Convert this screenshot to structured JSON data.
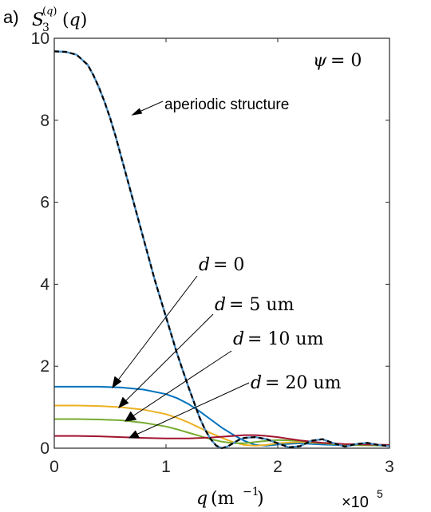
{
  "panel_label": "a)",
  "chart_data": {
    "type": "line",
    "title": "",
    "ylabel": "S_3^{(q)}(q)",
    "xlabel": "q (m^{-1})",
    "x_exponent": "×10^5",
    "xlim": [
      0,
      3
    ],
    "ylim": [
      0,
      10
    ],
    "x_scale_factor": 100000,
    "grid": false,
    "box": true,
    "xticks": [
      "0",
      "1",
      "2",
      "3"
    ],
    "yticks": [
      "0",
      "2",
      "4",
      "6",
      "8",
      "10"
    ],
    "annotations": {
      "psi": "ψ = 0",
      "aperiodic": "aperiodic structure",
      "d0": "d = 0",
      "d5": "d = 5 um",
      "d10": "d = 10 um",
      "d20": "d = 20 um"
    },
    "series": [
      {
        "key": "aperiodic",
        "color": "#000000",
        "dashed": true,
        "x": [
          0,
          0.1,
          0.2,
          0.3,
          0.35,
          0.4,
          0.45,
          0.5,
          0.55,
          0.6,
          0.65,
          0.7,
          0.8,
          0.9,
          1.0,
          1.1,
          1.2,
          1.3,
          1.35,
          1.4,
          1.45,
          1.5,
          1.55,
          1.6,
          1.65,
          1.7,
          1.8,
          1.9,
          2.0,
          2.1,
          2.2,
          2.3,
          2.4,
          2.5,
          2.6,
          2.7,
          2.8,
          2.9,
          3.0
        ],
        "y": [
          9.68,
          9.67,
          9.6,
          9.35,
          9.1,
          8.8,
          8.45,
          8.05,
          7.6,
          7.1,
          6.6,
          6.1,
          5.1,
          4.1,
          3.2,
          2.3,
          1.5,
          0.75,
          0.45,
          0.22,
          0.06,
          0.0,
          0.04,
          0.12,
          0.2,
          0.25,
          0.27,
          0.22,
          0.12,
          0.02,
          0.05,
          0.18,
          0.22,
          0.12,
          0.04,
          0.1,
          0.13,
          0.08,
          0.05
        ]
      },
      {
        "key": "d0",
        "color": "#0072BD",
        "dashed": false,
        "x": [
          0,
          0.2,
          0.4,
          0.6,
          0.8,
          1.0,
          1.1,
          1.2,
          1.3,
          1.4,
          1.5,
          1.6,
          1.7,
          1.8,
          1.9,
          2.0,
          2.2,
          2.4,
          2.6,
          2.8,
          3.0
        ],
        "y": [
          1.5,
          1.5,
          1.5,
          1.48,
          1.43,
          1.32,
          1.22,
          1.08,
          0.9,
          0.7,
          0.5,
          0.33,
          0.18,
          0.08,
          0.06,
          0.09,
          0.12,
          0.09,
          0.07,
          0.08,
          0.06
        ]
      },
      {
        "key": "d5",
        "color": "#EDB120",
        "dashed": false,
        "x": [
          0,
          0.2,
          0.4,
          0.6,
          0.8,
          1.0,
          1.1,
          1.2,
          1.3,
          1.4,
          1.5,
          1.6,
          1.7,
          1.8,
          1.9,
          2.0,
          2.2,
          2.4,
          2.6,
          2.8,
          3.0
        ],
        "y": [
          1.04,
          1.04,
          1.03,
          1.0,
          0.94,
          0.83,
          0.74,
          0.63,
          0.5,
          0.37,
          0.25,
          0.15,
          0.08,
          0.06,
          0.08,
          0.12,
          0.15,
          0.12,
          0.08,
          0.07,
          0.06
        ]
      },
      {
        "key": "d10",
        "color": "#77AC30",
        "dashed": false,
        "x": [
          0,
          0.2,
          0.4,
          0.6,
          0.8,
          1.0,
          1.1,
          1.2,
          1.3,
          1.4,
          1.5,
          1.6,
          1.7,
          1.8,
          1.9,
          2.0,
          2.2,
          2.4,
          2.6,
          2.8,
          3.0
        ],
        "y": [
          0.71,
          0.71,
          0.7,
          0.68,
          0.62,
          0.53,
          0.46,
          0.38,
          0.3,
          0.22,
          0.16,
          0.12,
          0.12,
          0.15,
          0.18,
          0.2,
          0.18,
          0.12,
          0.08,
          0.07,
          0.06
        ]
      },
      {
        "key": "d20",
        "color": "#A2142F",
        "dashed": false,
        "x": [
          0,
          0.2,
          0.4,
          0.6,
          0.8,
          1.0,
          1.2,
          1.4,
          1.6,
          1.7,
          1.8,
          1.9,
          2.0,
          2.1,
          2.2,
          2.4,
          2.6,
          2.8,
          3.0
        ],
        "y": [
          0.3,
          0.3,
          0.29,
          0.27,
          0.25,
          0.24,
          0.24,
          0.26,
          0.3,
          0.32,
          0.32,
          0.3,
          0.27,
          0.23,
          0.19,
          0.13,
          0.1,
          0.09,
          0.08
        ]
      }
    ]
  }
}
